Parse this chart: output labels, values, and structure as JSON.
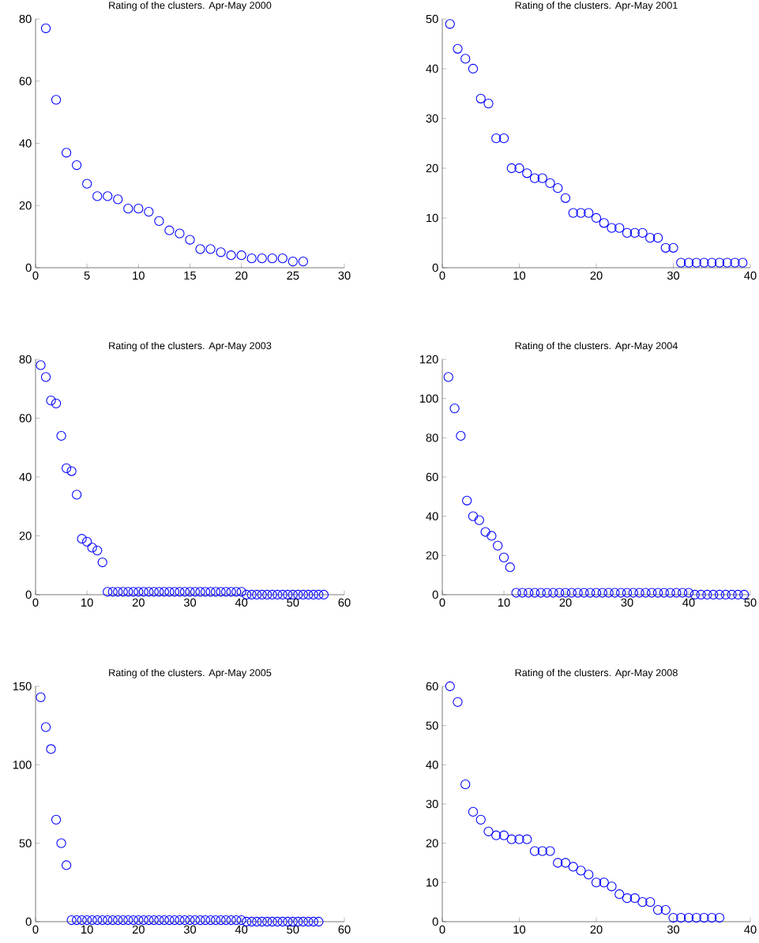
{
  "chart_data": [
    {
      "type": "scatter",
      "title": "Rating of the clusters. Apr-May 2000",
      "color": "#0000ff",
      "marker": "circle",
      "xlim": [
        0,
        30
      ],
      "ylim": [
        0,
        80
      ],
      "xticks": [
        0,
        5,
        10,
        15,
        20,
        25,
        30
      ],
      "yticks": [
        0,
        20,
        40,
        60,
        80
      ],
      "x": [
        1,
        2,
        3,
        4,
        5,
        6,
        7,
        8,
        9,
        10,
        11,
        12,
        13,
        14,
        15,
        16,
        17,
        18,
        19,
        20,
        21,
        22,
        23,
        24,
        25,
        26
      ],
      "values": [
        77,
        54,
        37,
        33,
        27,
        23,
        23,
        22,
        19,
        19,
        18,
        15,
        12,
        11,
        9,
        6,
        6,
        5,
        4,
        4,
        3,
        3,
        3,
        3,
        2,
        2
      ]
    },
    {
      "type": "scatter",
      "title": "Rating of the clusters. Apr-May 2001",
      "color": "#0000ff",
      "marker": "circle",
      "xlim": [
        0,
        40
      ],
      "ylim": [
        0,
        50
      ],
      "xticks": [
        0,
        10,
        20,
        30,
        40
      ],
      "yticks": [
        0,
        10,
        20,
        30,
        40,
        50
      ],
      "x": [
        1,
        2,
        3,
        4,
        5,
        6,
        7,
        8,
        9,
        10,
        11,
        12,
        13,
        14,
        15,
        16,
        17,
        18,
        19,
        20,
        21,
        22,
        23,
        24,
        25,
        26,
        27,
        28,
        29,
        30,
        31,
        32,
        33,
        34,
        35,
        36,
        37,
        38,
        39
      ],
      "values": [
        49,
        44,
        42,
        40,
        34,
        33,
        26,
        26,
        20,
        20,
        19,
        18,
        18,
        17,
        16,
        14,
        11,
        11,
        11,
        10,
        9,
        8,
        8,
        7,
        7,
        7,
        6,
        6,
        4,
        4,
        1,
        1,
        1,
        1,
        1,
        1,
        1,
        1,
        1
      ]
    },
    {
      "type": "scatter",
      "title": "Rating of the clusters. Apr-May 2003",
      "color": "#0000ff",
      "marker": "circle",
      "xlim": [
        0,
        60
      ],
      "ylim": [
        0,
        80
      ],
      "xticks": [
        0,
        10,
        20,
        30,
        40,
        50,
        60
      ],
      "yticks": [
        0,
        20,
        40,
        60,
        80
      ],
      "x": [
        1,
        2,
        3,
        4,
        5,
        6,
        7,
        8,
        9,
        10,
        11,
        12,
        13,
        14,
        15,
        16,
        17,
        18,
        19,
        20,
        21,
        22,
        23,
        24,
        25,
        26,
        27,
        28,
        29,
        30,
        31,
        32,
        33,
        34,
        35,
        36,
        37,
        38,
        39,
        40,
        41,
        42,
        43,
        44,
        45,
        46,
        47,
        48,
        49,
        50,
        51,
        52,
        53,
        54,
        55,
        56
      ],
      "values": [
        78,
        74,
        66,
        65,
        54,
        43,
        42,
        34,
        19,
        18,
        16,
        15,
        11,
        1,
        1,
        1,
        1,
        1,
        1,
        1,
        1,
        1,
        1,
        1,
        1,
        1,
        1,
        1,
        1,
        1,
        1,
        1,
        1,
        1,
        1,
        1,
        1,
        1,
        1,
        1,
        0,
        0,
        0,
        0,
        0,
        0,
        0,
        0,
        0,
        0,
        0,
        0,
        0,
        0,
        0,
        0
      ]
    },
    {
      "type": "scatter",
      "title": "Rating of the clusters. Apr-May 2004",
      "color": "#0000ff",
      "marker": "circle",
      "xlim": [
        0,
        50
      ],
      "ylim": [
        0,
        120
      ],
      "xticks": [
        0,
        10,
        20,
        30,
        40,
        50
      ],
      "yticks": [
        0,
        20,
        40,
        60,
        80,
        100,
        120
      ],
      "x": [
        1,
        2,
        3,
        4,
        5,
        6,
        7,
        8,
        9,
        10,
        11,
        12,
        13,
        14,
        15,
        16,
        17,
        18,
        19,
        20,
        21,
        22,
        23,
        24,
        25,
        26,
        27,
        28,
        29,
        30,
        31,
        32,
        33,
        34,
        35,
        36,
        37,
        38,
        39,
        40,
        41,
        42,
        43,
        44,
        45,
        46,
        47,
        48,
        49
      ],
      "values": [
        111,
        95,
        81,
        48,
        40,
        38,
        32,
        30,
        25,
        19,
        14,
        1,
        1,
        1,
        1,
        1,
        1,
        1,
        1,
        1,
        1,
        1,
        1,
        1,
        1,
        1,
        1,
        1,
        1,
        1,
        1,
        1,
        1,
        1,
        1,
        1,
        1,
        1,
        1,
        1,
        0,
        0,
        0,
        0,
        0,
        0,
        0,
        0,
        0
      ]
    },
    {
      "type": "scatter",
      "title": "Rating of the clusters. Apr-May 2005",
      "color": "#0000ff",
      "marker": "circle",
      "xlim": [
        0,
        60
      ],
      "ylim": [
        0,
        150
      ],
      "xticks": [
        0,
        10,
        20,
        30,
        40,
        50,
        60
      ],
      "yticks": [
        0,
        50,
        100,
        150
      ],
      "x": [
        1,
        2,
        3,
        4,
        5,
        6,
        7,
        8,
        9,
        10,
        11,
        12,
        13,
        14,
        15,
        16,
        17,
        18,
        19,
        20,
        21,
        22,
        23,
        24,
        25,
        26,
        27,
        28,
        29,
        30,
        31,
        32,
        33,
        34,
        35,
        36,
        37,
        38,
        39,
        40,
        41,
        42,
        43,
        44,
        45,
        46,
        47,
        48,
        49,
        50,
        51,
        52,
        53,
        54,
        55
      ],
      "values": [
        143,
        124,
        110,
        65,
        50,
        36,
        1,
        1,
        1,
        1,
        1,
        1,
        1,
        1,
        1,
        1,
        1,
        1,
        1,
        1,
        1,
        1,
        1,
        1,
        1,
        1,
        1,
        1,
        1,
        1,
        1,
        1,
        1,
        1,
        1,
        1,
        1,
        1,
        1,
        1,
        0,
        0,
        0,
        0,
        0,
        0,
        0,
        0,
        0,
        0,
        0,
        0,
        0,
        0,
        0
      ]
    },
    {
      "type": "scatter",
      "title": "Rating of the clusters. Apr-May 2008",
      "color": "#0000ff",
      "marker": "circle",
      "xlim": [
        0,
        40
      ],
      "ylim": [
        0,
        60
      ],
      "xticks": [
        0,
        10,
        20,
        30,
        40
      ],
      "yticks": [
        0,
        10,
        20,
        30,
        40,
        50,
        60
      ],
      "x": [
        1,
        2,
        3,
        4,
        5,
        6,
        7,
        8,
        9,
        10,
        11,
        12,
        13,
        14,
        15,
        16,
        17,
        18,
        19,
        20,
        21,
        22,
        23,
        24,
        25,
        26,
        27,
        28,
        29,
        30,
        31,
        32,
        33,
        34,
        35,
        36
      ],
      "values": [
        60,
        56,
        35,
        28,
        26,
        23,
        22,
        22,
        21,
        21,
        21,
        18,
        18,
        18,
        15,
        15,
        14,
        13,
        12,
        10,
        10,
        9,
        7,
        6,
        6,
        5,
        5,
        3,
        3,
        1,
        1,
        1,
        1,
        1,
        1,
        1
      ]
    }
  ]
}
